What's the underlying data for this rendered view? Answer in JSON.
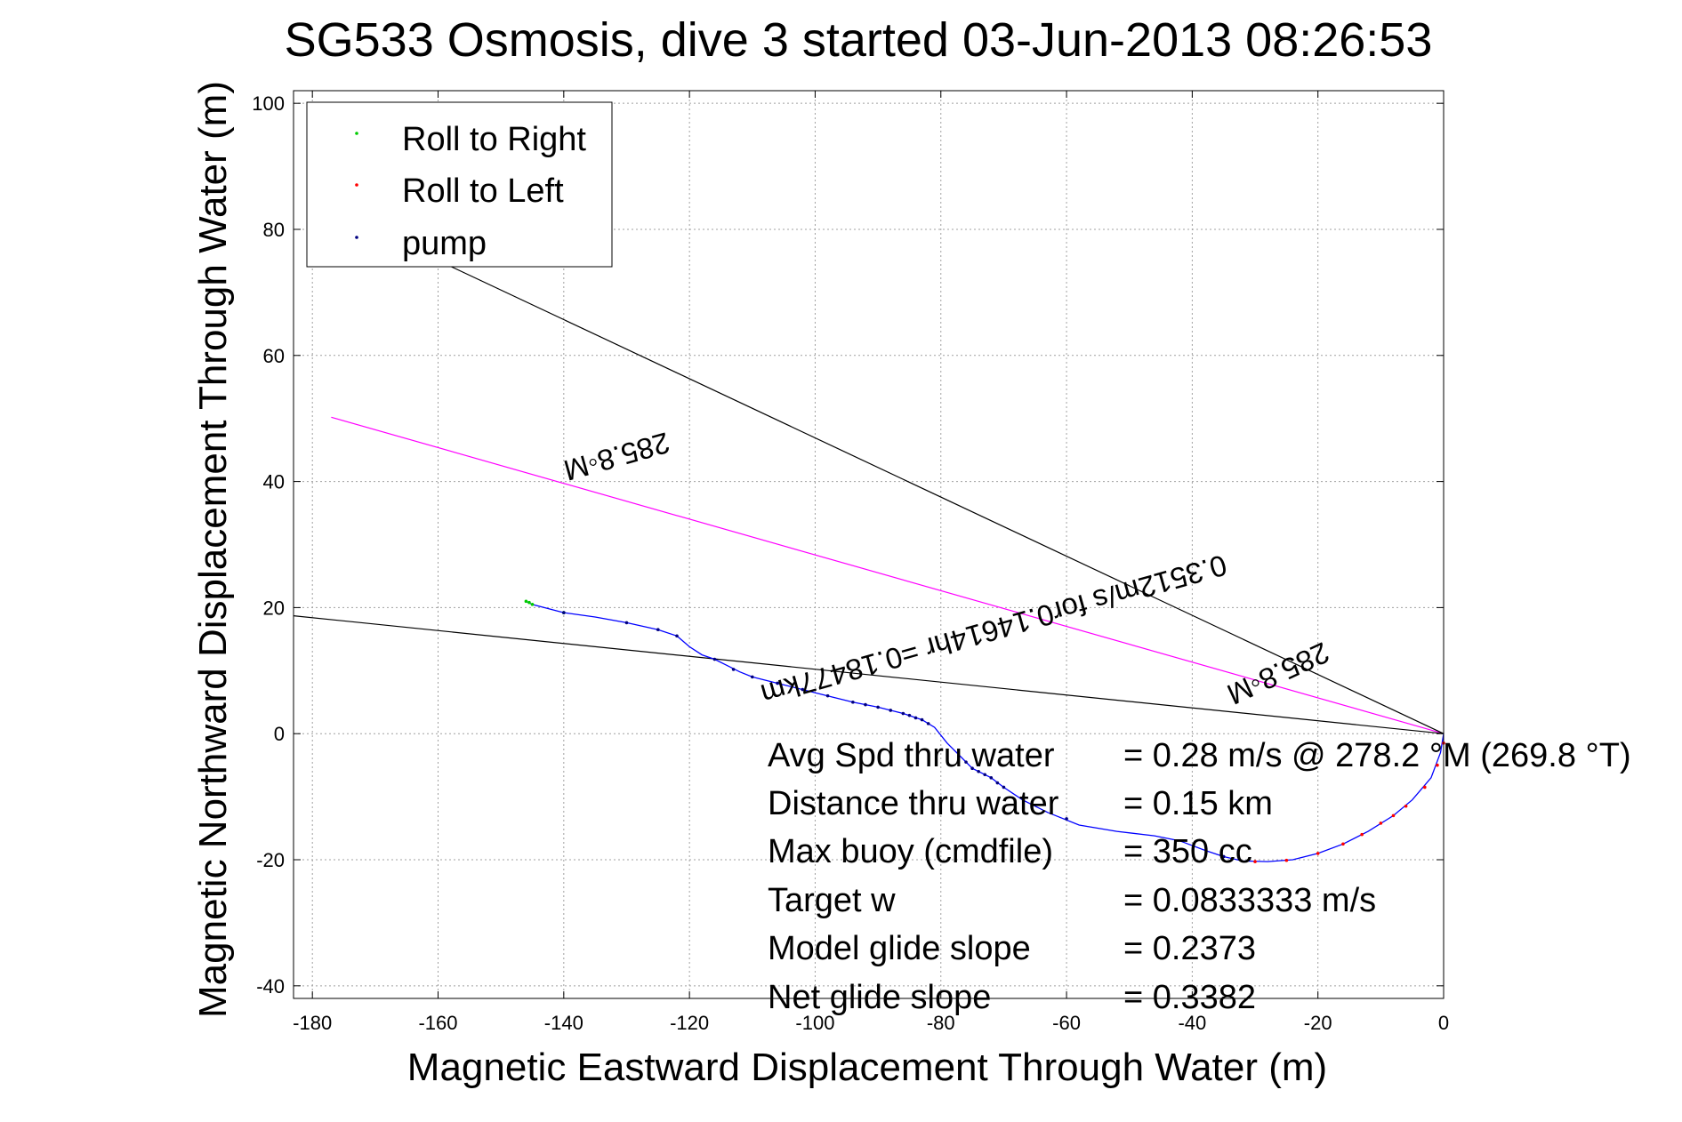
{
  "chart_data": {
    "type": "line",
    "title": "SG533 Osmosis, dive 3 started 03-Jun-2013 08:26:53",
    "xlabel": "Magnetic Eastward Displacement Through Water (m)",
    "ylabel": "Magnetic Northward Displacement Through Water (m)",
    "xlim": [
      -183,
      0
    ],
    "ylim": [
      -42,
      102
    ],
    "grid": true,
    "legend_position": "top-left",
    "xticks": [
      -180,
      -160,
      -140,
      -120,
      -100,
      -80,
      -60,
      -40,
      -20,
      0
    ],
    "yticks": [
      -40,
      -20,
      0,
      20,
      40,
      60,
      80,
      100
    ],
    "xtick_labels": [
      "-180",
      "-160",
      "-140",
      "-120",
      "-100",
      "-80",
      "-60",
      "-40",
      "-20",
      "0"
    ],
    "ytick_labels": [
      "-40",
      "-20",
      "0",
      "20",
      "40",
      "60",
      "80",
      "100"
    ],
    "legend": [
      {
        "label": "Roll to Right",
        "color": "#00cc00"
      },
      {
        "label": "Roll to Left",
        "color": "#ff0000"
      },
      {
        "label": "pump",
        "color": "#000080"
      }
    ],
    "track": {
      "color": "#0000ff",
      "points": [
        [
          -146,
          21
        ],
        [
          -145,
          20.5
        ],
        [
          -140,
          19.2
        ],
        [
          -135,
          18.5
        ],
        [
          -130,
          17.6
        ],
        [
          -125,
          16.5
        ],
        [
          -122,
          15.5
        ],
        [
          -120,
          13.8
        ],
        [
          -118,
          12.5
        ],
        [
          -116,
          11.8
        ],
        [
          -114,
          10.8
        ],
        [
          -112,
          9.8
        ],
        [
          -110,
          9.0
        ],
        [
          -106,
          8.0
        ],
        [
          -102,
          7.0
        ],
        [
          -98,
          6.0
        ],
        [
          -94,
          5.0
        ],
        [
          -90,
          4.2
        ],
        [
          -86,
          3.2
        ],
        [
          -83,
          2.2
        ],
        [
          -81,
          1.0
        ],
        [
          -79,
          -1.5
        ],
        [
          -77,
          -3.5
        ],
        [
          -75,
          -5.5
        ],
        [
          -72,
          -7.0
        ],
        [
          -70,
          -8.5
        ],
        [
          -67,
          -10.5
        ],
        [
          -63,
          -12.5
        ],
        [
          -58,
          -14.5
        ],
        [
          -52,
          -15.5
        ],
        [
          -46,
          -16.2
        ],
        [
          -42,
          -17.0
        ],
        [
          -38,
          -18.5
        ],
        [
          -35,
          -19.5
        ],
        [
          -32,
          -20.2
        ],
        [
          -28,
          -20.3
        ],
        [
          -24,
          -20.0
        ],
        [
          -20,
          -19.0
        ],
        [
          -16,
          -17.5
        ],
        [
          -12,
          -15.5
        ],
        [
          -8,
          -13.0
        ],
        [
          -5,
          -10.5
        ],
        [
          -2,
          -7.0
        ],
        [
          -0.5,
          -3.0
        ],
        [
          0,
          0
        ]
      ],
      "roll_right_points": [
        [
          -146,
          21
        ],
        [
          -145.5,
          20.8
        ],
        [
          -145,
          20.5
        ],
        [
          -140,
          19.2
        ]
      ],
      "roll_left_points": [
        [
          -30,
          -20.3
        ],
        [
          -25,
          -20.1
        ],
        [
          -20,
          -19.0
        ],
        [
          -16,
          -17.5
        ],
        [
          -13,
          -16.0
        ],
        [
          -10,
          -14.2
        ],
        [
          -8,
          -13.0
        ],
        [
          -6,
          -11.5
        ],
        [
          -3,
          -8.5
        ],
        [
          -1,
          -5.0
        ],
        [
          0,
          -1.5
        ]
      ],
      "pump_points": [
        [
          -140,
          19.2
        ],
        [
          -130,
          17.6
        ],
        [
          -125,
          16.5
        ],
        [
          -122,
          15.5
        ],
        [
          -116,
          11.8
        ],
        [
          -113,
          10.2
        ],
        [
          -110,
          9.0
        ],
        [
          -106,
          8.0
        ],
        [
          -102,
          7.0
        ],
        [
          -98,
          6.0
        ],
        [
          -94,
          5.0
        ],
        [
          -92,
          4.6
        ],
        [
          -90,
          4.2
        ],
        [
          -88,
          3.7
        ],
        [
          -86,
          3.2
        ],
        [
          -85,
          2.9
        ],
        [
          -84,
          2.5
        ],
        [
          -83,
          2.2
        ],
        [
          -82,
          1.6
        ],
        [
          -76,
          -4.5
        ],
        [
          -75,
          -5.5
        ],
        [
          -74,
          -6.0
        ],
        [
          -73,
          -6.5
        ],
        [
          -72,
          -7.0
        ],
        [
          -71,
          -7.8
        ],
        [
          -70,
          -8.5
        ],
        [
          -60,
          -13.5
        ],
        [
          -35,
          -19.5
        ]
      ]
    },
    "reference_lines": [
      {
        "color": "#ff00ff",
        "points": [
          [
            -177,
            50.2
          ],
          [
            0,
            0
          ]
        ]
      },
      {
        "color": "#000000",
        "points": [
          [
            -183,
            18.7
          ],
          [
            0,
            0
          ]
        ]
      },
      {
        "color": "#000000",
        "points": [
          [
            -162,
            76
          ],
          [
            0,
            0
          ]
        ]
      }
    ],
    "annotations": [
      {
        "text": "285.8◦M",
        "x": -132,
        "y": 45.5,
        "angle": 164.2
      },
      {
        "text": "0.3512m/s for0.14614hr =0.18477km",
        "x": -72,
        "y": 18,
        "angle": 164.2
      },
      {
        "text": "285.8◦M",
        "x": -27,
        "y": 11,
        "angle": 155.1
      }
    ],
    "stats": [
      {
        "label": "Avg Spd thru water",
        "value": "=  0.28 m/s @ 278.2 °M (269.8 °T)"
      },
      {
        "label": "Distance thru water",
        "value": "=  0.15 km"
      },
      {
        "label": "Max buoy (cmdfile)",
        "value": "= 350 cc"
      },
      {
        "label": "Target w",
        "value": "= 0.0833333 m/s"
      },
      {
        "label": "Model glide slope",
        "value": "= 0.2373"
      },
      {
        "label": "Net glide slope",
        "value": "= 0.3382"
      }
    ]
  }
}
